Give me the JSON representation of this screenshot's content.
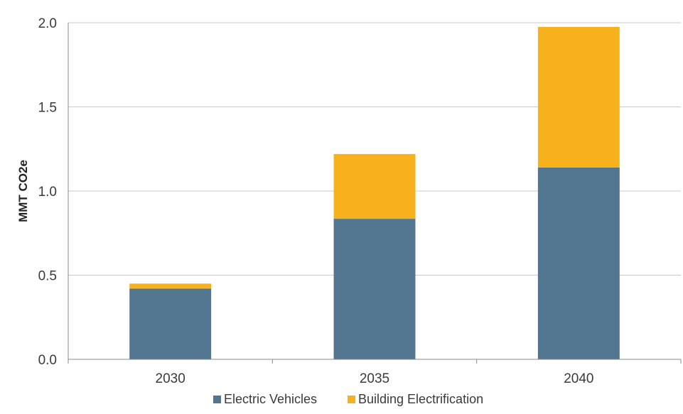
{
  "chart_data": {
    "type": "bar",
    "stacked": true,
    "categories": [
      "2030",
      "2035",
      "2040"
    ],
    "series": [
      {
        "name": "Electric Vehicles",
        "values": [
          0.42,
          0.835,
          1.14
        ],
        "color": "#527590"
      },
      {
        "name": "Building Electrification",
        "values": [
          0.03,
          0.385,
          0.835
        ],
        "color": "#f7b11c"
      }
    ],
    "title": "",
    "xlabel": "",
    "ylabel": "MMT CO2e",
    "ylim": [
      0,
      2.0
    ],
    "yticks": [
      "0.0",
      "0.5",
      "1.0",
      "1.5",
      "2.0"
    ],
    "grid": true,
    "legend_position": "bottom"
  }
}
